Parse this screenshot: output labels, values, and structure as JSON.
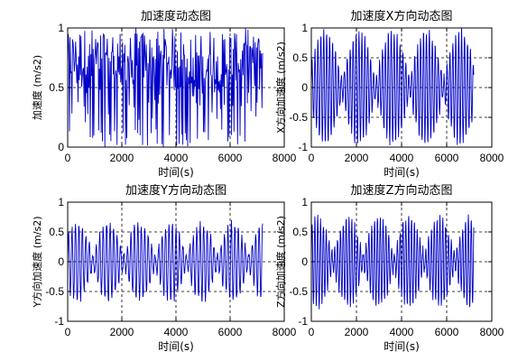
{
  "chart_data": [
    {
      "type": "line",
      "title": "加速度动态图",
      "xlabel": "时间(s)",
      "ylabel": "加速度 (m/s2)",
      "xlim": [
        0,
        8000
      ],
      "ylim": [
        0,
        1
      ],
      "xticks": [
        "0",
        "2000",
        "4000",
        "6000",
        "8000"
      ],
      "yticks": [
        "0",
        "0.5",
        "1"
      ],
      "grid": true,
      "color": "#0000c8",
      "series": [
        {
          "x_start": 0,
          "x_end": 7200,
          "samples": 320,
          "center": 0.5,
          "low": 0.0,
          "high": 1.0,
          "pattern": "dense noise mostly 0.5–1.0 with frequent dips to ~0"
        }
      ]
    },
    {
      "type": "line",
      "title": "加速度X方向动态图",
      "xlabel": "时间(s)",
      "ylabel": "X方向加速度 (m/s2)",
      "xlim": [
        0,
        8000
      ],
      "ylim": [
        -1,
        1
      ],
      "xticks": [
        "0",
        "2000",
        "4000",
        "6000",
        "8000"
      ],
      "yticks": [
        "-1",
        "-0.5",
        "0",
        "0.5",
        "1"
      ],
      "grid": true,
      "color": "#0000c8",
      "series": [
        {
          "x_start": 0,
          "x_end": 7200,
          "peak": 0.95,
          "pattern": "oscillation with beating envelope"
        }
      ]
    },
    {
      "type": "line",
      "title": "加速度Y方向动态图",
      "xlabel": "时间(s)",
      "ylabel": "Y方向加速度 (m/s2)",
      "xlim": [
        0,
        8000
      ],
      "ylim": [
        -1,
        1
      ],
      "xticks": [
        "0",
        "2000",
        "4000",
        "6000",
        "8000"
      ],
      "yticks": [
        "-1",
        "-0.5",
        "0",
        "0.5",
        "1"
      ],
      "grid": true,
      "color": "#0000c8",
      "series": [
        {
          "x_start": 0,
          "x_end": 7200,
          "peak": 0.65,
          "pattern": "oscillation with beating envelope"
        }
      ]
    },
    {
      "type": "line",
      "title": "加速度Z方向动态图",
      "xlabel": "时间(s)",
      "ylabel": "Z方向加速度 (m/s2)",
      "xlim": [
        0,
        8000
      ],
      "ylim": [
        -1,
        1
      ],
      "xticks": [
        "0",
        "2000",
        "4000",
        "6000",
        "8000"
      ],
      "yticks": [
        "-1",
        "-0.5",
        "0",
        "0.5",
        "1"
      ],
      "grid": true,
      "color": "#0000c8",
      "series": [
        {
          "x_start": 0,
          "x_end": 7200,
          "peak": 0.75,
          "pattern": "oscillation with beating envelope"
        }
      ]
    }
  ]
}
